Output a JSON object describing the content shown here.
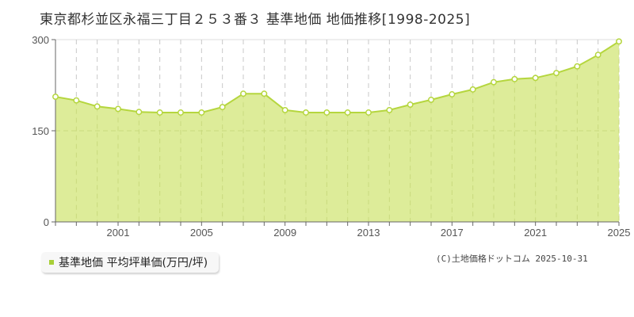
{
  "title": "東京都杉並区永福三丁目２５３番３ 基準地価 地価推移[1998-2025]",
  "legend": {
    "label": "基準地価 平均坪単価(万円/坪)",
    "color": "#a8cf38"
  },
  "copyright": "(C)土地価格ドットコム 2025-10-31",
  "colors": {
    "fill": "#dbeb94",
    "line": "#b5d63e",
    "marker_fill": "#ffffff",
    "marker_stroke": "#b5d63e",
    "grid": "#c8c8c8",
    "axis": "#666666"
  },
  "chart_data": {
    "type": "area",
    "title": "東京都杉並区永福三丁目２５３番３ 基準地価 地価推移[1998-2025]",
    "xlabel": "",
    "ylabel": "",
    "ylim": [
      0,
      300
    ],
    "yticks": [
      0,
      150,
      300
    ],
    "xtick_labels": [
      "2001",
      "2005",
      "2009",
      "2013",
      "2017",
      "2021",
      "2025"
    ],
    "grid": true,
    "legend_position": "bottom-left",
    "x": [
      1998,
      1999,
      2000,
      2001,
      2002,
      2003,
      2004,
      2005,
      2006,
      2007,
      2008,
      2009,
      2010,
      2011,
      2012,
      2013,
      2014,
      2015,
      2016,
      2017,
      2018,
      2019,
      2020,
      2021,
      2022,
      2023,
      2024,
      2025
    ],
    "series": [
      {
        "name": "基準地価 平均坪単価(万円/坪)",
        "values": [
          206,
          200,
          190,
          186,
          181,
          180,
          180,
          180,
          189,
          211,
          211,
          184,
          180,
          180,
          180,
          180,
          184,
          193,
          201,
          210,
          218,
          230,
          235,
          237,
          245,
          256,
          275,
          297
        ]
      }
    ]
  }
}
